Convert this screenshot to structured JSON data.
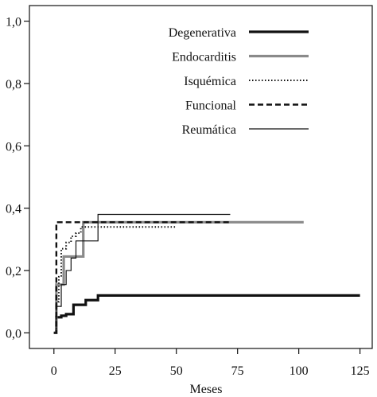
{
  "chart_data": {
    "type": "line",
    "xlabel": "Meses",
    "ylabel": "",
    "xlim": [
      -10,
      130
    ],
    "ylim": [
      -0.05,
      1.05
    ],
    "x_ticks": [
      0,
      25,
      50,
      75,
      100,
      125
    ],
    "x_tick_labels": [
      "0",
      "25",
      "50",
      "75",
      "100",
      "125"
    ],
    "y_ticks": [
      0.0,
      0.2,
      0.4,
      0.6,
      0.8,
      1.0
    ],
    "y_tick_labels": [
      "0,0",
      "0,2",
      "0,4",
      "0,6",
      "0,8",
      "1,0"
    ],
    "legend_position": "top-right",
    "series": [
      {
        "name": "Degenerativa",
        "style": "solid-thick",
        "color": "#111111",
        "x": [
          0,
          1,
          3,
          5,
          8,
          10,
          13,
          18,
          125
        ],
        "y": [
          0.0,
          0.05,
          0.055,
          0.06,
          0.09,
          0.09,
          0.105,
          0.12,
          0.12
        ]
      },
      {
        "name": "Endocarditis",
        "style": "solid-thick",
        "color": "#8a8a8a",
        "x": [
          0,
          1,
          4,
          6,
          12,
          102
        ],
        "y": [
          0.0,
          0.155,
          0.245,
          0.245,
          0.355,
          0.355
        ]
      },
      {
        "name": "Isquémica",
        "style": "dotted",
        "color": "#111111",
        "x": [
          0,
          1,
          2,
          3,
          5,
          7,
          9,
          11,
          50
        ],
        "y": [
          0.0,
          0.1,
          0.18,
          0.27,
          0.29,
          0.31,
          0.32,
          0.34,
          0.34
        ]
      },
      {
        "name": "Funcional",
        "style": "dashed",
        "color": "#111111",
        "x": [
          0,
          1,
          72
        ],
        "y": [
          0.0,
          0.355,
          0.355
        ]
      },
      {
        "name": "Reumática",
        "style": "solid-thin",
        "color": "#111111",
        "x": [
          0,
          1,
          3,
          5,
          7,
          9,
          13,
          18,
          72
        ],
        "y": [
          0.0,
          0.085,
          0.155,
          0.2,
          0.24,
          0.295,
          0.295,
          0.38,
          0.38
        ]
      }
    ]
  }
}
